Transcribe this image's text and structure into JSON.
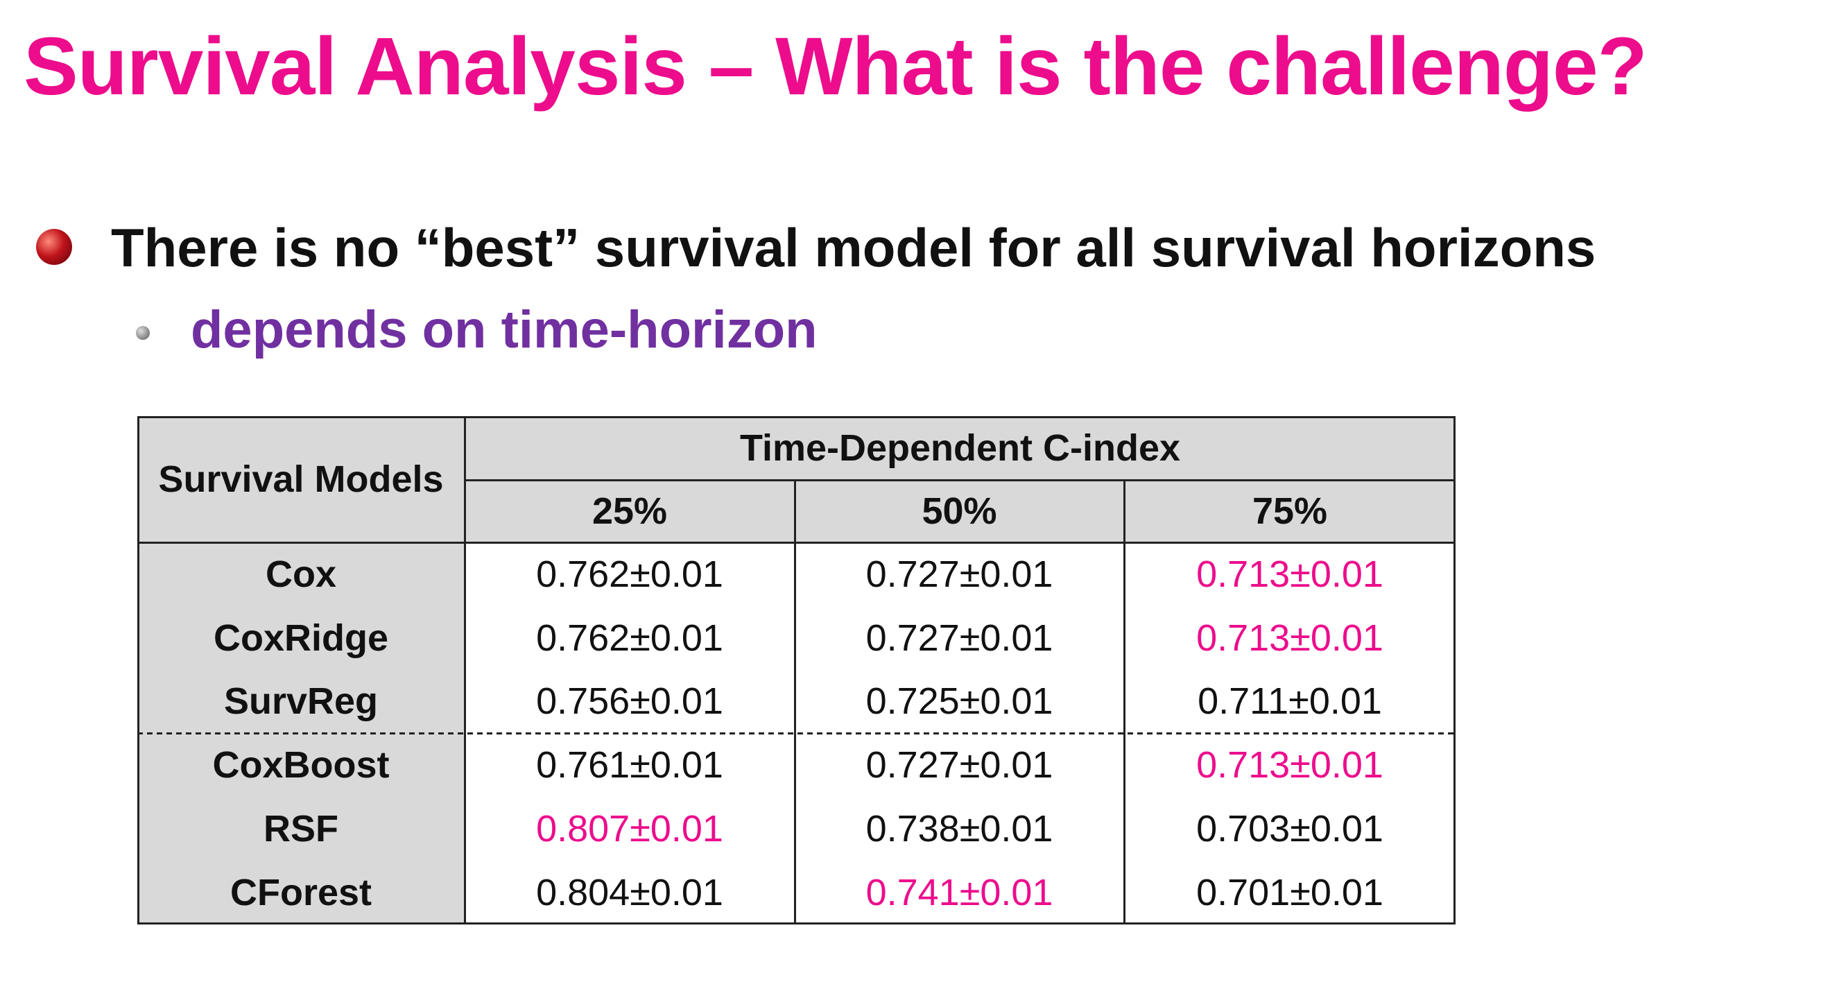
{
  "title": "Survival Analysis – What is the challenge?",
  "bullet": "There is no “best” survival model for all survival horizons",
  "sub_bullet": "depends on time-horizon",
  "table": {
    "row_header": "Survival Models",
    "group_header": "Time-Dependent C-index",
    "columns": [
      "25%",
      "50%",
      "75%"
    ],
    "highlight_color": "#ec0c8c",
    "groups": [
      [
        {
          "model": "Cox",
          "cells": [
            "0.762±0.01",
            "0.727±0.01",
            "0.713±0.01"
          ],
          "highlight": [
            false,
            false,
            true
          ]
        },
        {
          "model": "CoxRidge",
          "cells": [
            "0.762±0.01",
            "0.727±0.01",
            "0.713±0.01"
          ],
          "highlight": [
            false,
            false,
            true
          ]
        },
        {
          "model": "SurvReg",
          "cells": [
            "0.756±0.01",
            "0.725±0.01",
            "0.711±0.01"
          ],
          "highlight": [
            false,
            false,
            false
          ]
        }
      ],
      [
        {
          "model": "CoxBoost",
          "cells": [
            "0.761±0.01",
            "0.727±0.01",
            "0.713±0.01"
          ],
          "highlight": [
            false,
            false,
            true
          ]
        },
        {
          "model": "RSF",
          "cells": [
            "0.807±0.01",
            "0.738±0.01",
            "0.703±0.01"
          ],
          "highlight": [
            true,
            false,
            false
          ]
        },
        {
          "model": "CForest",
          "cells": [
            "0.804±0.01",
            "0.741±0.01",
            "0.701±0.01"
          ],
          "highlight": [
            false,
            true,
            false
          ]
        }
      ]
    ]
  }
}
